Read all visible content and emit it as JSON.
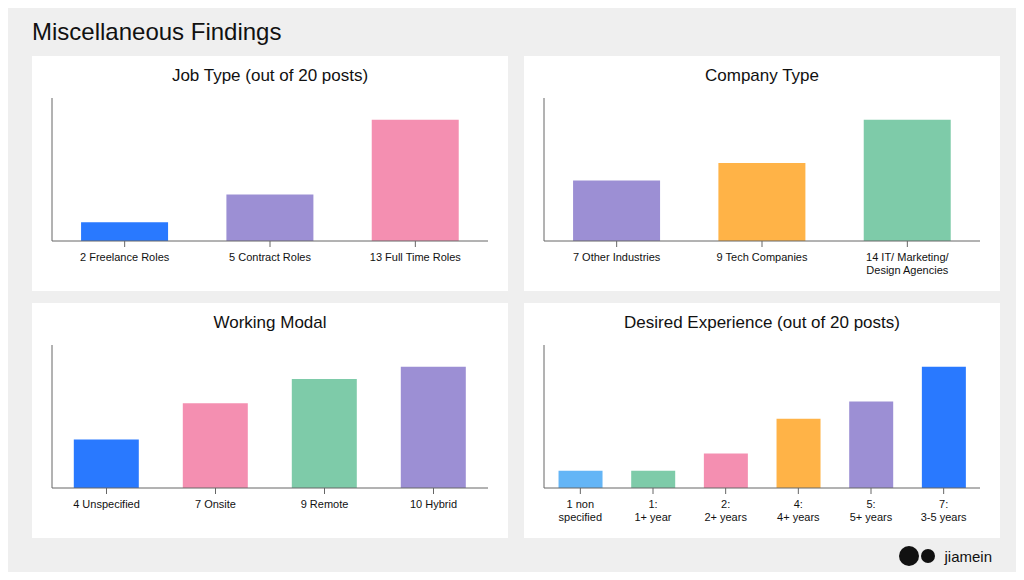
{
  "title": "Miscellaneous Findings",
  "annotations": [
    "jiamein"
  ],
  "chart_data": [
    {
      "type": "bar",
      "title": "Job Type (out of 20 posts)",
      "categories": [
        "2 Freelance Roles",
        "5 Contract Roles",
        "13 Full Time Roles"
      ],
      "values": [
        2,
        5,
        13
      ],
      "colors": [
        "#2979ff",
        "#9c8fd4",
        "#f48fb1"
      ],
      "ylim": [
        0,
        15.34
      ],
      "tick_labels": "x",
      "grid": false
    },
    {
      "type": "bar",
      "title": "Company Type",
      "categories": [
        "7 Other Industries",
        "9 Tech Companies",
        "14 IT/ Marketing/\nDesign Agencies"
      ],
      "values": [
        7,
        9,
        14
      ],
      "colors": [
        "#9c8fd4",
        "#ffb347",
        "#7ecba9"
      ],
      "ylim": [
        0,
        16.52
      ],
      "tick_labels": "x",
      "grid": false
    },
    {
      "type": "bar",
      "title": "Working Modal",
      "categories": [
        "4 Unspecified",
        "7 Onsite",
        "9 Remote",
        "10 Hybrid"
      ],
      "values": [
        4,
        7,
        9,
        10
      ],
      "colors": [
        "#2979ff",
        "#f48fb1",
        "#7ecba9",
        "#9c8fd4"
      ],
      "ylim": [
        0,
        11.8
      ],
      "tick_labels": "x",
      "grid": false
    },
    {
      "type": "bar",
      "title": "Desired Experience (out of 20 posts)",
      "categories": [
        "1 non\nspecified",
        "1:\n1+ year",
        "2:\n2+ years",
        "4:\n4+ years",
        "5:\n5+ years",
        "7:\n3-5 years"
      ],
      "values": [
        1,
        1,
        2,
        4,
        5,
        7
      ],
      "colors": [
        "#64b5f6",
        "#7ecba9",
        "#f48fb1",
        "#ffb347",
        "#9c8fd4",
        "#2979ff"
      ],
      "ylim": [
        0,
        8.26
      ],
      "tick_labels": "x",
      "grid": false
    }
  ]
}
